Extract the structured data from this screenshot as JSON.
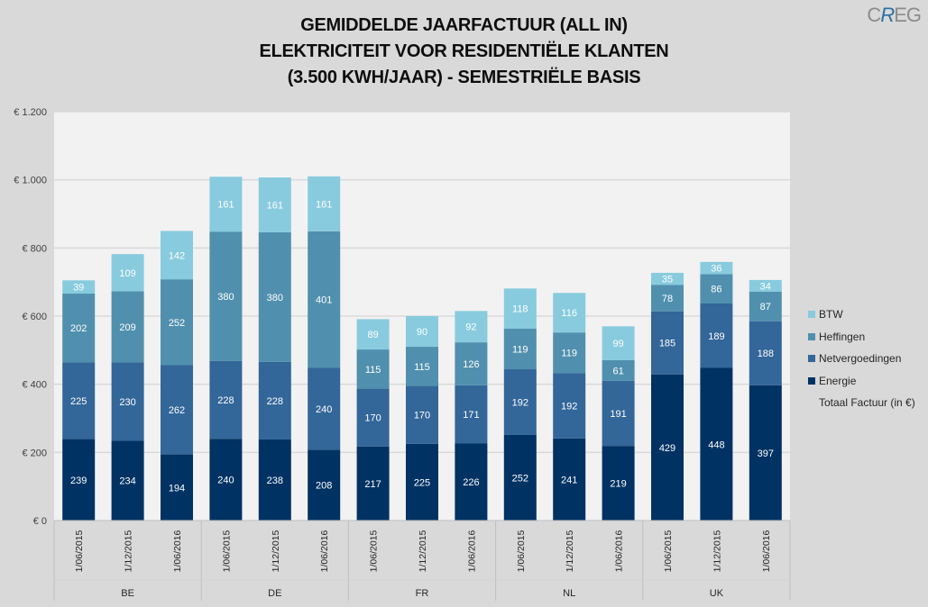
{
  "title_lines": [
    "GEMIDDELDE JAARFACTUUR (ALL IN)",
    "ELEKTRICITEIT VOOR RESIDENTIËLE KLANTEN",
    "(3.500 KWH/JAAR) - SEMESTRIËLE BASIS"
  ],
  "logo": {
    "prefix": "C",
    "accent": "R",
    "suffix": "EG"
  },
  "legend": {
    "total_label": "Totaal Factuur (in €)"
  },
  "chart_data": {
    "type": "bar",
    "stacked": true,
    "title": "GEMIDDELDE JAARFACTUUR (ALL IN) ELEKTRICITEIT VOOR RESIDENTIËLE KLANTEN (3.500 KWH/JAAR) - SEMESTRIËLE BASIS",
    "xlabel": "",
    "ylabel": "",
    "ylim": [
      0,
      1200
    ],
    "yticks": [
      0,
      200,
      400,
      600,
      800,
      1000,
      1200
    ],
    "ytick_labels": [
      "€ 0",
      "€ 200",
      "€ 400",
      "€ 600",
      "€ 800",
      "€ 1.000",
      "€ 1.200"
    ],
    "grid": true,
    "legend_position": "right",
    "groups": [
      "BE",
      "DE",
      "FR",
      "NL",
      "UK"
    ],
    "categories": [
      "1/06/2015",
      "1/12/2015",
      "1/06/2016",
      "1/06/2015",
      "1/12/2015",
      "1/06/2016",
      "1/06/2015",
      "1/12/2015",
      "1/06/2016",
      "1/06/2015",
      "1/12/2015",
      "1/06/2016",
      "1/06/2015",
      "1/12/2015",
      "1/06/2016"
    ],
    "series": [
      {
        "name": "Energie",
        "color": "#003263",
        "values": [
          239,
          234,
          194,
          240,
          238,
          208,
          217,
          225,
          226,
          252,
          241,
          219,
          429,
          448,
          397
        ]
      },
      {
        "name": "Netvergoedingen",
        "color": "#336699",
        "values": [
          225,
          230,
          262,
          228,
          228,
          240,
          170,
          170,
          171,
          192,
          192,
          191,
          185,
          189,
          188
        ]
      },
      {
        "name": "Heffingen",
        "color": "#5090ae",
        "values": [
          202,
          209,
          252,
          380,
          380,
          401,
          115,
          115,
          126,
          119,
          119,
          61,
          78,
          86,
          87
        ]
      },
      {
        "name": "BTW",
        "color": "#88cbde",
        "values": [
          39,
          109,
          142,
          161,
          161,
          161,
          89,
          90,
          92,
          118,
          116,
          99,
          35,
          36,
          34
        ]
      }
    ]
  }
}
